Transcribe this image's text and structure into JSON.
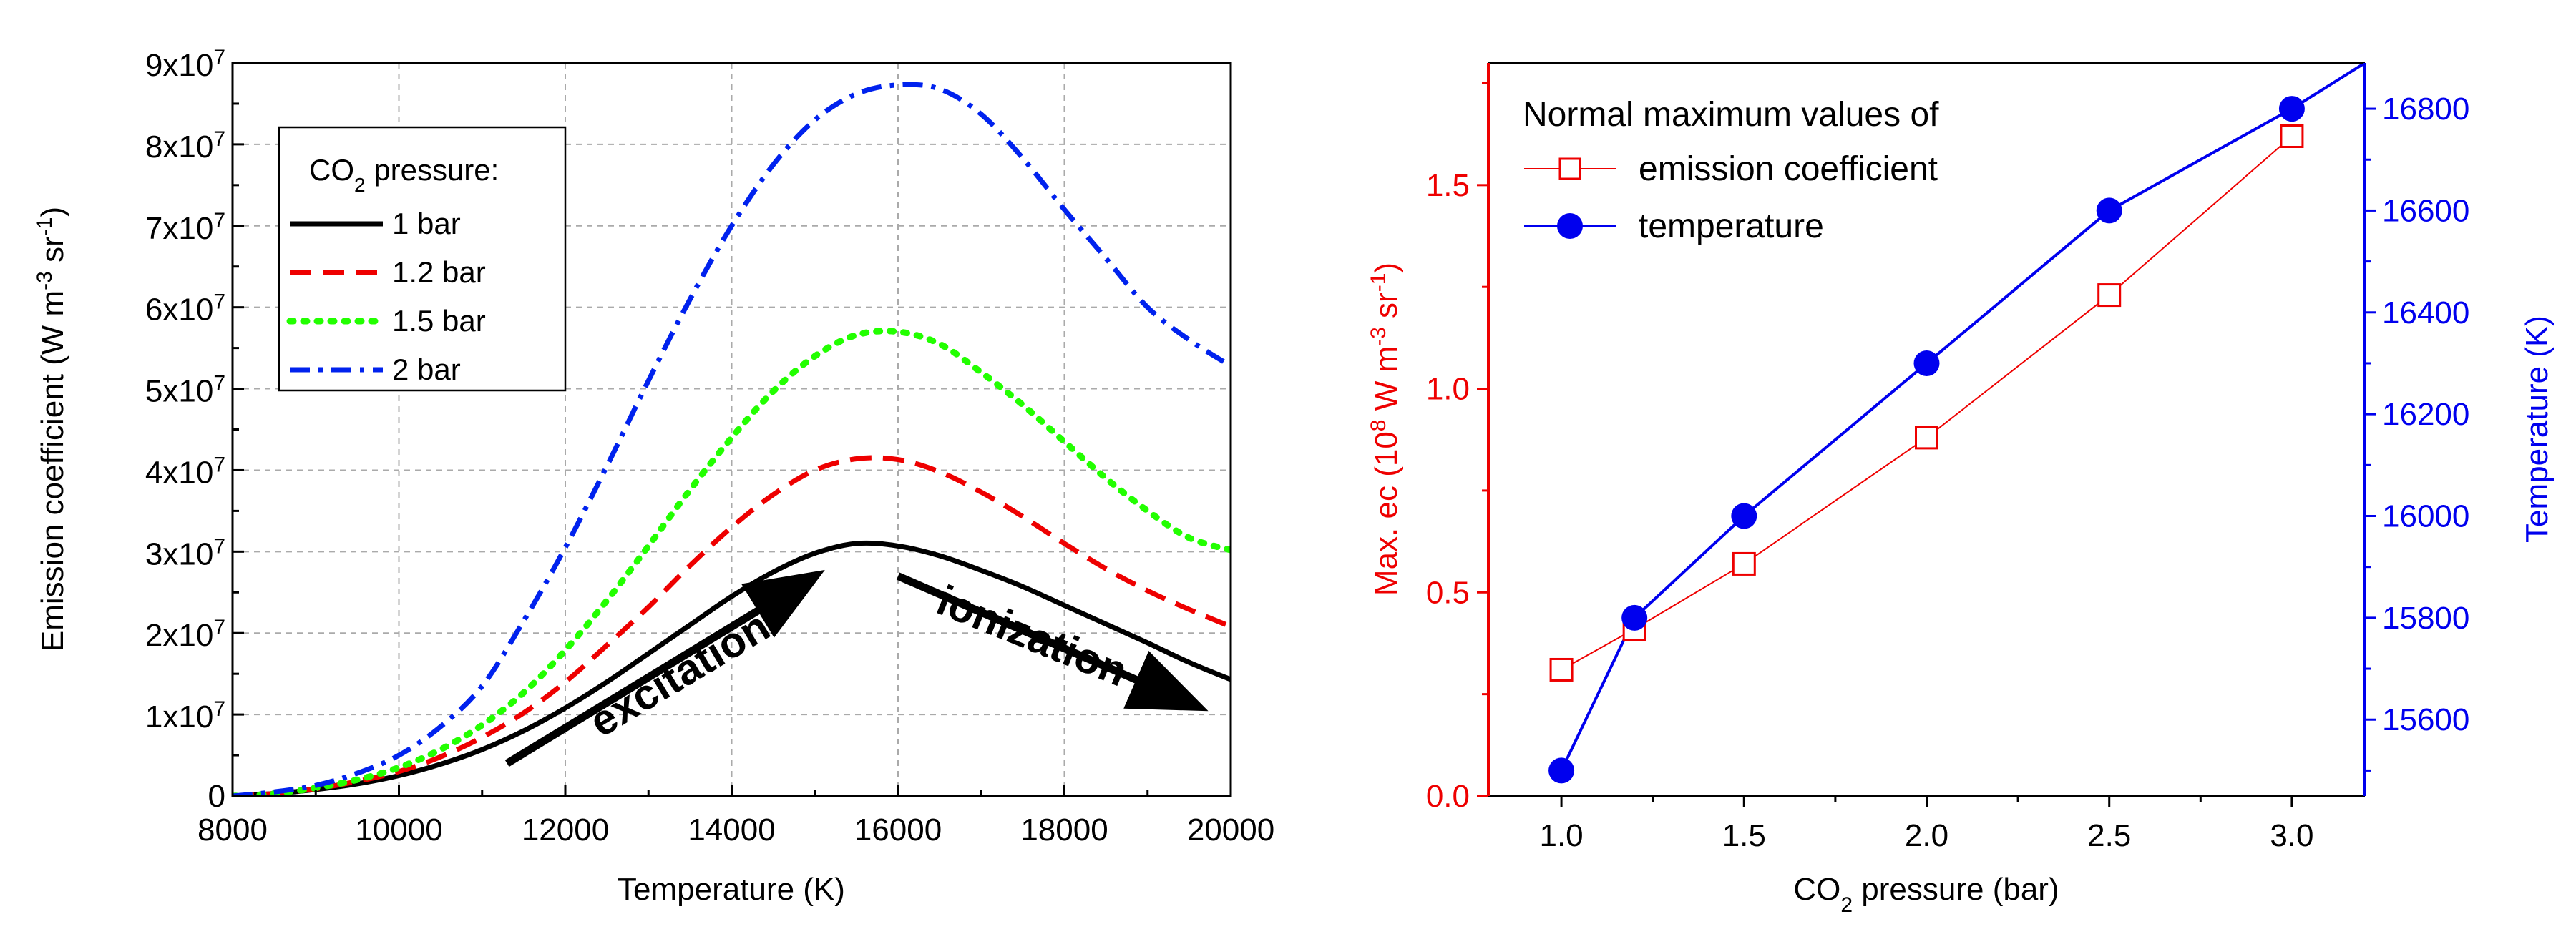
{
  "chart_data": [
    {
      "type": "line",
      "title": "",
      "xlabel": "Temperature (K)",
      "ylabel": {
        "base": "Emission coefficient (W m",
        "sup1": "-3",
        "mid": " sr",
        "sup2": "-1",
        "end": ")"
      },
      "xlim": [
        8000,
        20000
      ],
      "ylim": [
        0,
        90000000
      ],
      "grid": true,
      "xticks": [
        {
          "v": 8000,
          "label": "8000"
        },
        {
          "v": 10000,
          "label": "10000"
        },
        {
          "v": 12000,
          "label": "12000"
        },
        {
          "v": 14000,
          "label": "14000"
        },
        {
          "v": 16000,
          "label": "16000"
        },
        {
          "v": 18000,
          "label": "18000"
        },
        {
          "v": 20000,
          "label": "20000"
        }
      ],
      "yticks": [
        {
          "v": 0,
          "label": "0"
        },
        {
          "v": 10000000,
          "base": "1x10",
          "exp": "7"
        },
        {
          "v": 20000000,
          "base": "2x10",
          "exp": "7"
        },
        {
          "v": 30000000,
          "base": "3x10",
          "exp": "7"
        },
        {
          "v": 40000000,
          "base": "4x10",
          "exp": "7"
        },
        {
          "v": 50000000,
          "base": "5x10",
          "exp": "7"
        },
        {
          "v": 60000000,
          "base": "6x10",
          "exp": "7"
        },
        {
          "v": 70000000,
          "base": "7x10",
          "exp": "7"
        },
        {
          "v": 80000000,
          "base": "8x10",
          "exp": "7"
        },
        {
          "v": 90000000,
          "base": "9x10",
          "exp": "7"
        }
      ],
      "legend": {
        "title_base": "CO",
        "title_sub": "2",
        "title_end": " pressure:",
        "placement": "top-left"
      },
      "series": [
        {
          "name": "1 bar",
          "color": "#000000",
          "dash": "solid",
          "peak": 31000000,
          "peak_x": 15500,
          "x": [
            8000,
            8500,
            9000,
            9500,
            10000,
            10500,
            11000,
            11500,
            12000,
            12500,
            13000,
            13500,
            14000,
            14500,
            15000,
            15500,
            16000,
            16500,
            17000,
            17500,
            18000,
            18500,
            19000,
            19500,
            20000
          ],
          "values": [
            0,
            300000,
            800000,
            1500000,
            2500000,
            3900000,
            5700000,
            8000000,
            10800000,
            14000000,
            17500000,
            21000000,
            24500000,
            27500000,
            29800000,
            31000000,
            30700000,
            29500000,
            27700000,
            25700000,
            23400000,
            21100000,
            18800000,
            16400000,
            14300000
          ]
        },
        {
          "name": "1.2 bar",
          "color": "#ee0000",
          "dash": "dashed",
          "peak": 41500000,
          "peak_x": 15800,
          "x": [
            8000,
            8500,
            9000,
            9500,
            10000,
            10500,
            11000,
            11500,
            12000,
            12500,
            13000,
            13500,
            14000,
            14500,
            15000,
            15500,
            16000,
            16500,
            17000,
            17500,
            18000,
            18500,
            19000,
            19500,
            20000
          ],
          "values": [
            0,
            300000,
            900000,
            1800000,
            3000000,
            4800000,
            7200000,
            10200000,
            14000000,
            18500000,
            23200000,
            28300000,
            33000000,
            37000000,
            40000000,
            41400000,
            41300000,
            39800000,
            37300000,
            34300000,
            31000000,
            27900000,
            25200000,
            22900000,
            20800000
          ]
        },
        {
          "name": "1.5 bar",
          "color": "#22ff00",
          "dash": "dotted",
          "peak": 57000000,
          "peak_x": 16000,
          "x": [
            8000,
            8500,
            9000,
            9500,
            10000,
            10500,
            11000,
            11500,
            12000,
            12500,
            13000,
            13500,
            14000,
            14500,
            15000,
            15500,
            16000,
            16500,
            17000,
            17500,
            18000,
            18500,
            19000,
            19500,
            20000
          ],
          "values": [
            0,
            300000,
            1000000,
            2000000,
            3500000,
            5700000,
            8700000,
            12700000,
            17900000,
            24000000,
            30700000,
            37600000,
            44000000,
            49700000,
            54000000,
            56600000,
            57000000,
            55500000,
            52000000,
            48000000,
            43500000,
            39000000,
            35000000,
            31700000,
            30200000
          ]
        },
        {
          "name": "2 bar",
          "color": "#0022ee",
          "dash": "dashdot",
          "peak": 87500000,
          "peak_x": 16300,
          "x": [
            8000,
            8500,
            9000,
            9500,
            10000,
            10500,
            11000,
            11500,
            12000,
            12500,
            13000,
            13500,
            14000,
            14500,
            15000,
            15500,
            16000,
            16500,
            17000,
            17500,
            18000,
            18500,
            19000,
            19500,
            20000
          ],
          "values": [
            0,
            500000,
            1300000,
            2800000,
            5000000,
            8500000,
            13500000,
            21500000,
            30500000,
            40500000,
            51000000,
            61000000,
            70000000,
            77500000,
            83000000,
            86200000,
            87300000,
            86800000,
            83700000,
            78300000,
            72000000,
            66000000,
            60000000,
            56000000,
            52800000
          ]
        }
      ],
      "annotations": [
        {
          "text": "excitation",
          "arrow_from": [
            11300,
            4000000
          ],
          "arrow_to": [
            15000,
            27000000
          ]
        },
        {
          "text": "ionization",
          "arrow_from": [
            16000,
            27000000
          ],
          "arrow_to": [
            19600,
            11000000
          ]
        }
      ]
    },
    {
      "type": "line",
      "title": "",
      "xlabel": {
        "base": "CO",
        "sub": "2",
        "end": " pressure (bar)"
      },
      "ylabel_left": {
        "base": "Max. ec (10",
        "sup1": "8",
        "mid": " W m",
        "sup2": "-3",
        "mid2": " sr",
        "sup3": "-1",
        "end": ")"
      },
      "ylabel_right": "Temperature (K)",
      "xlim": [
        0.8,
        3.2
      ],
      "ylim_left": [
        0,
        1.8
      ],
      "ylim_right": [
        15450,
        16890
      ],
      "grid": false,
      "xticks": [
        {
          "v": 1.0,
          "label": "1.0"
        },
        {
          "v": 1.5,
          "label": "1.5"
        },
        {
          "v": 2.0,
          "label": "2.0"
        },
        {
          "v": 2.5,
          "label": "2.5"
        },
        {
          "v": 3.0,
          "label": "3.0"
        }
      ],
      "xminor": [
        1.25,
        1.75,
        2.25,
        2.75
      ],
      "yticks_left": [
        {
          "v": 0.0,
          "label": "0.0"
        },
        {
          "v": 0.5,
          "label": "0.5"
        },
        {
          "v": 1.0,
          "label": "1.0"
        },
        {
          "v": 1.5,
          "label": "1.5"
        }
      ],
      "yminor_left": [
        0.25,
        0.75,
        1.25,
        1.75
      ],
      "yticks_right": [
        {
          "v": 15600,
          "label": "15600"
        },
        {
          "v": 15800,
          "label": "15800"
        },
        {
          "v": 16000,
          "label": "16000"
        },
        {
          "v": 16200,
          "label": "16200"
        },
        {
          "v": 16400,
          "label": "16400"
        },
        {
          "v": 16600,
          "label": "16600"
        },
        {
          "v": 16800,
          "label": "16800"
        }
      ],
      "yminor_right": [
        15500,
        15700,
        15900,
        16100,
        16300,
        16500,
        16700
      ],
      "legend": {
        "title": "Normal maximum values of",
        "placement": "top-left"
      },
      "series": [
        {
          "name": "emission coefficient",
          "axis": "left",
          "color": "#ee0000",
          "marker": "open-square",
          "x": [
            1.0,
            1.2,
            1.5,
            2.0,
            2.5,
            3.0
          ],
          "values": [
            0.31,
            0.41,
            0.57,
            0.88,
            1.23,
            1.62
          ]
        },
        {
          "name": "temperature",
          "axis": "right",
          "color": "#0000ee",
          "marker": "filled-circle",
          "x": [
            1.0,
            1.2,
            1.5,
            2.0,
            2.5,
            3.0
          ],
          "values": [
            15500,
            15800,
            16000,
            16300,
            16600,
            16800
          ],
          "extend_to_x": 3.2,
          "extend_value": 16890
        }
      ],
      "axis_colors": {
        "left": "#ee0000",
        "right": "#0000ee"
      }
    }
  ]
}
